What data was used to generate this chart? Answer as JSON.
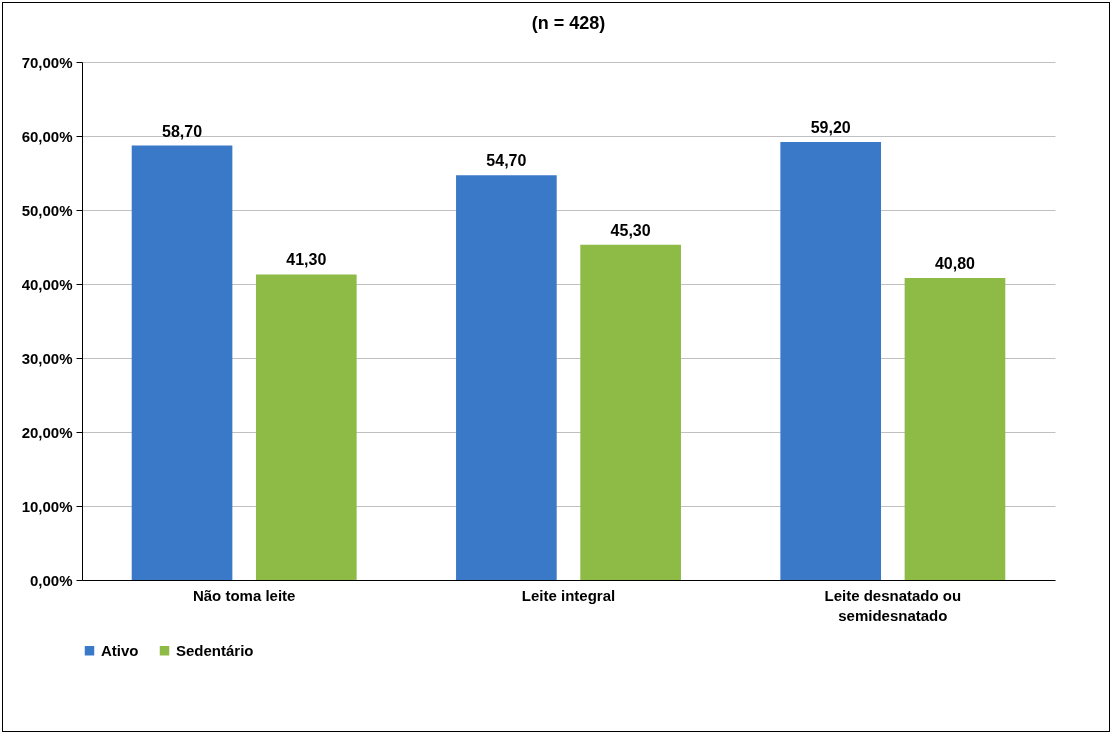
{
  "chart_data": {
    "type": "bar",
    "title": "(n = 428)",
    "categories": [
      "Não toma leite",
      "Leite integral",
      "Leite desnatado ou semidesnatado"
    ],
    "series": [
      {
        "name": "Ativo",
        "color": "#3a78c8",
        "values": [
          58.7,
          54.7,
          59.2
        ],
        "value_labels": [
          "58,70",
          "54,70",
          "59,20"
        ]
      },
      {
        "name": "Sedentário",
        "color": "#8dbb45",
        "values": [
          41.3,
          45.3,
          40.8
        ],
        "value_labels": [
          "41,30",
          "45,30",
          "40,80"
        ]
      }
    ],
    "ylim": [
      0,
      70
    ],
    "yticks": [
      {
        "value": 0,
        "label": "0,00%"
      },
      {
        "value": 10,
        "label": "10,00%"
      },
      {
        "value": 20,
        "label": "20,00%"
      },
      {
        "value": 30,
        "label": "30,00%"
      },
      {
        "value": 40,
        "label": "40,00%"
      },
      {
        "value": 50,
        "label": "50,00%"
      },
      {
        "value": 60,
        "label": "60,00%"
      },
      {
        "value": 70,
        "label": "70,00%"
      }
    ],
    "grid": "y",
    "legend": "bottom"
  }
}
